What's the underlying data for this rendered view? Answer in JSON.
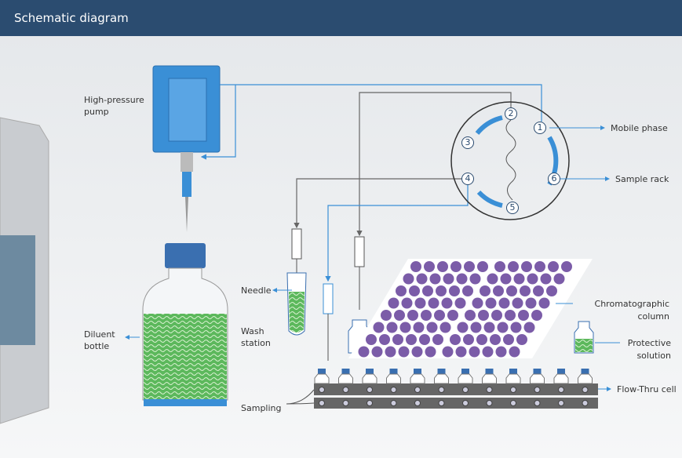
{
  "header": {
    "title": "Schematic diagram"
  },
  "labels": {
    "pump": [
      "High-pressure",
      "pump"
    ],
    "bottle": [
      "Diluent",
      "bottle"
    ],
    "needle": [
      "Needle"
    ],
    "wash": [
      "Wash",
      "station"
    ],
    "sampling": [
      "Sampling"
    ],
    "mobile": [
      "Mobile phase"
    ],
    "rack": [
      "Sample rack"
    ],
    "column": [
      "Chromatographic",
      "column"
    ],
    "protective": [
      "Protective",
      "solution"
    ],
    "flow": [
      "Flow-Thru cell"
    ]
  },
  "valve": {
    "ports": [
      "1",
      "2",
      "3",
      "4",
      "5",
      "6"
    ]
  }
}
